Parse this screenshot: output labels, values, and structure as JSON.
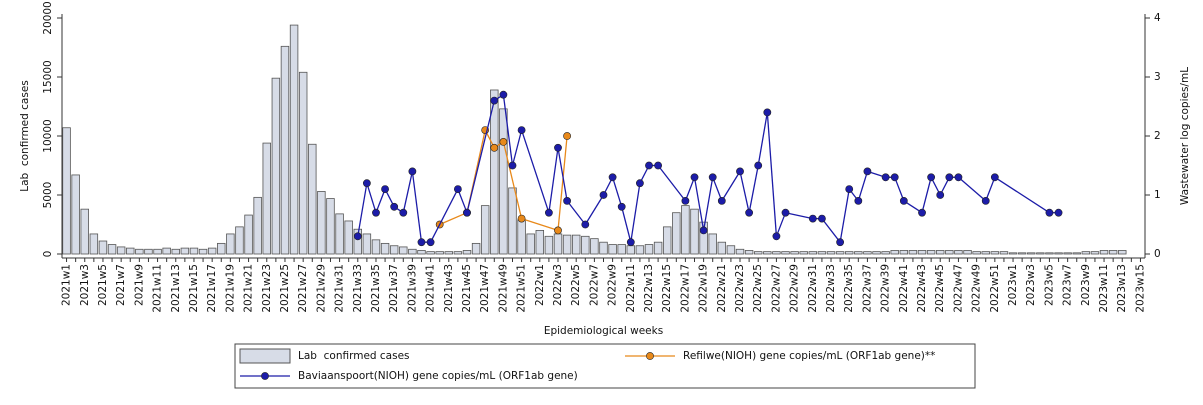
{
  "chart_data": {
    "type": "bar",
    "x_label": "Epidemiological weeks",
    "y_label": "Lab  confirmed cases",
    "y2_label": "Wastewater log copies/mL",
    "categories": [
      "2021w1",
      null,
      "2021w3",
      null,
      "2021w5",
      null,
      "2021w7",
      null,
      "2021w9",
      null,
      "2021w11",
      null,
      "2021w13",
      null,
      "2021w15",
      null,
      "2021w17",
      null,
      "2021w19",
      null,
      "2021w21",
      null,
      "2021w23",
      null,
      "2021w25",
      null,
      "2021w27",
      null,
      "2021w29",
      null,
      "2021w31",
      null,
      "2021w33",
      null,
      "2021w35",
      null,
      "2021w37",
      null,
      "2021w39",
      null,
      "2021w41",
      null,
      "2021w43",
      null,
      "2021w45",
      null,
      "2021w47",
      null,
      "2021w49",
      null,
      "2021w51",
      null,
      "2022w1",
      null,
      "2022w3",
      null,
      "2022w5",
      null,
      "2022w7",
      null,
      "2022w9",
      null,
      "2022w11",
      null,
      "2022w13",
      null,
      "2022w15",
      null,
      "2022w17",
      null,
      "2022w19",
      null,
      "2022w21",
      null,
      "2022w23",
      null,
      "2022w25",
      null,
      "2022w27",
      null,
      "2022w29",
      null,
      "2022w31",
      null,
      "2022w33",
      null,
      "2022w35",
      null,
      "2022w37",
      null,
      "2022w39",
      null,
      "2022w41",
      null,
      "2022w43",
      null,
      "2022w45",
      null,
      "2022w47",
      null,
      "2022w49",
      null,
      "2022w51",
      null,
      "2023w1",
      null,
      "2023w3",
      null,
      "2023w5",
      null,
      "2023w7",
      null,
      "2023w9",
      null,
      "2023w11",
      null,
      "2023w13",
      null,
      "2023w15"
    ],
    "series": [
      {
        "name": "Lab  confirmed cases",
        "type": "bar",
        "color": "#d7dce7",
        "values": [
          10700,
          6700,
          3800,
          1700,
          1100,
          800,
          600,
          500,
          400,
          400,
          400,
          500,
          400,
          500,
          500,
          400,
          500,
          900,
          1700,
          2300,
          3300,
          4800,
          9400,
          14900,
          17600,
          19400,
          15400,
          9300,
          5300,
          4700,
          3400,
          2800,
          2100,
          1700,
          1200,
          900,
          700,
          600,
          400,
          300,
          200,
          200,
          200,
          200,
          300,
          900,
          4100,
          13900,
          12300,
          5600,
          2900,
          1700,
          2000,
          1500,
          1700,
          1600,
          1600,
          1500,
          1300,
          1000,
          800,
          800,
          700,
          700,
          800,
          1000,
          2300,
          3500,
          4100,
          3800,
          2700,
          1700,
          1000,
          700,
          400,
          300,
          200,
          200,
          200,
          200,
          200,
          200,
          200,
          200,
          200,
          200,
          200,
          200,
          200,
          200,
          200,
          300,
          300,
          300,
          300,
          300,
          300,
          300,
          300,
          300,
          200,
          200,
          200,
          200,
          100,
          100,
          100,
          100,
          100,
          100,
          100,
          100,
          200,
          200,
          300,
          300,
          300,
          0,
          0
        ]
      },
      {
        "name": "Refilwe(NIOH) gene copies/mL (ORF1ab gene)**",
        "type": "line",
        "axis": "y2",
        "color": "#e8891a",
        "values": [
          null,
          null,
          null,
          null,
          null,
          null,
          null,
          null,
          null,
          null,
          null,
          null,
          null,
          null,
          null,
          null,
          null,
          null,
          null,
          null,
          null,
          null,
          null,
          null,
          null,
          null,
          null,
          null,
          null,
          null,
          null,
          null,
          null,
          null,
          null,
          null,
          null,
          null,
          null,
          null,
          null,
          0.5,
          null,
          null,
          0.7,
          null,
          2.1,
          1.8,
          1.9,
          null,
          0.6,
          null,
          null,
          null,
          0.4,
          2.0,
          null,
          null,
          null,
          null,
          null,
          null,
          null,
          null,
          null,
          null,
          null,
          null,
          null,
          null,
          null,
          null,
          null,
          null,
          null,
          null,
          null,
          null,
          null,
          null,
          null,
          null,
          null,
          null,
          null,
          null,
          null,
          null,
          null,
          null,
          null,
          null,
          null,
          null,
          null,
          null,
          null,
          null,
          null,
          null,
          null,
          null,
          null,
          null,
          null,
          null,
          null,
          null,
          null,
          null,
          null,
          null,
          null,
          null,
          null,
          null,
          null,
          null,
          null
        ]
      },
      {
        "name": "Baviaanspoort(NIOH) gene copies/mL (ORF1ab gene)",
        "type": "line",
        "axis": "y2",
        "color": "#1c1ca8",
        "values": [
          null,
          null,
          null,
          null,
          null,
          null,
          null,
          null,
          null,
          null,
          null,
          null,
          null,
          null,
          null,
          null,
          null,
          null,
          null,
          null,
          null,
          null,
          null,
          null,
          null,
          null,
          null,
          null,
          null,
          null,
          null,
          null,
          0.3,
          1.2,
          0.7,
          1.1,
          0.8,
          0.7,
          1.4,
          0.2,
          0.2,
          null,
          null,
          1.1,
          0.7,
          null,
          null,
          2.6,
          2.7,
          1.5,
          2.1,
          null,
          null,
          0.7,
          1.8,
          0.9,
          null,
          0.5,
          null,
          1.0,
          1.3,
          0.8,
          0.2,
          1.2,
          1.5,
          1.5,
          null,
          null,
          0.9,
          1.3,
          0.4,
          1.3,
          0.9,
          null,
          1.4,
          0.7,
          1.5,
          2.4,
          0.3,
          0.7,
          null,
          null,
          0.6,
          0.6,
          null,
          0.2,
          1.1,
          0.9,
          1.4,
          null,
          1.3,
          1.3,
          0.9,
          null,
          0.7,
          1.3,
          1.0,
          1.3,
          1.3,
          null,
          null,
          0.9,
          1.3,
          null,
          null,
          null,
          null,
          null,
          0.7,
          0.7,
          null,
          null,
          null,
          null,
          null,
          null,
          null,
          null,
          null
        ]
      }
    ],
    "ylim": [
      0,
      20000
    ],
    "yticks": [
      0,
      5000,
      10000,
      15000,
      20000
    ],
    "y2lim": [
      0,
      4
    ],
    "y2ticks": [
      0,
      1,
      2,
      3,
      4
    ]
  }
}
